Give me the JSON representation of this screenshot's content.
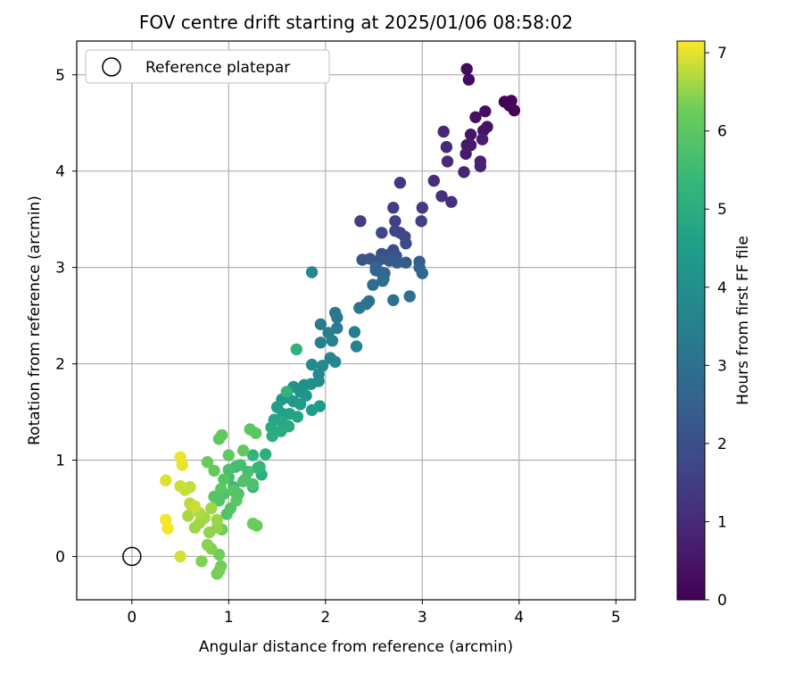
{
  "chart_data": {
    "type": "scatter",
    "title": "FOV centre drift starting at 2025/01/06 08:58:02",
    "xlabel": "Angular distance from reference (arcmin)",
    "ylabel": "Rotation from reference (arcmin)",
    "xlim": [
      -0.57,
      5.2
    ],
    "ylim": [
      -0.45,
      5.35
    ],
    "xticks": [
      "0",
      "1",
      "2",
      "3",
      "4",
      "5"
    ],
    "yticks": [
      "0",
      "1",
      "2",
      "3",
      "4",
      "5"
    ],
    "grid": true,
    "legend": {
      "placement": "top-left",
      "entries": [
        {
          "label": "Reference platepar",
          "marker": "open-circle"
        }
      ]
    },
    "reference_point": {
      "x": 0,
      "y": 0
    },
    "colorbar": {
      "label": "Hours from first FF file",
      "colormap": "viridis",
      "range": [
        0,
        7.15
      ],
      "ticks": [
        "0",
        "1",
        "2",
        "3",
        "4",
        "5",
        "6",
        "7"
      ]
    },
    "points": [
      [
        3.85,
        4.72,
        0.02
      ],
      [
        3.92,
        4.73,
        0.05
      ],
      [
        3.9,
        4.68,
        0.08
      ],
      [
        3.95,
        4.63,
        0.1
      ],
      [
        3.46,
        5.06,
        0.2
      ],
      [
        3.48,
        4.95,
        0.25
      ],
      [
        3.65,
        4.62,
        0.3
      ],
      [
        3.55,
        4.56,
        0.35
      ],
      [
        3.67,
        4.46,
        0.4
      ],
      [
        3.63,
        4.42,
        0.45
      ],
      [
        3.5,
        4.38,
        0.5
      ],
      [
        3.46,
        4.27,
        0.55
      ],
      [
        3.5,
        4.27,
        0.6
      ],
      [
        3.45,
        4.18,
        0.65
      ],
      [
        3.62,
        4.33,
        0.7
      ],
      [
        3.6,
        4.1,
        0.75
      ],
      [
        3.6,
        4.05,
        0.8
      ],
      [
        3.43,
        3.99,
        0.85
      ],
      [
        3.22,
        4.41,
        0.9
      ],
      [
        3.25,
        4.25,
        0.95
      ],
      [
        3.26,
        4.1,
        1.0
      ],
      [
        3.12,
        3.9,
        1.05
      ],
      [
        3.2,
        3.74,
        1.1
      ],
      [
        3.3,
        3.68,
        1.15
      ],
      [
        2.77,
        3.88,
        1.3
      ],
      [
        3.0,
        3.62,
        1.4
      ],
      [
        2.36,
        3.48,
        1.45
      ],
      [
        2.7,
        3.62,
        1.5
      ],
      [
        2.72,
        3.48,
        1.55
      ],
      [
        2.99,
        3.48,
        1.6
      ],
      [
        2.72,
        3.38,
        1.65
      ],
      [
        2.77,
        3.36,
        1.7
      ],
      [
        2.58,
        3.36,
        1.75
      ],
      [
        2.82,
        3.32,
        1.8
      ],
      [
        2.83,
        3.25,
        1.85
      ],
      [
        2.69,
        3.16,
        1.9
      ],
      [
        2.7,
        3.18,
        1.95
      ],
      [
        2.58,
        3.14,
        2.0
      ],
      [
        2.65,
        3.13,
        2.05
      ],
      [
        2.73,
        3.12,
        2.1
      ],
      [
        2.38,
        3.08,
        2.15
      ],
      [
        2.46,
        3.09,
        2.2
      ],
      [
        2.56,
        3.08,
        2.25
      ],
      [
        2.66,
        3.07,
        2.3
      ],
      [
        2.74,
        3.05,
        2.35
      ],
      [
        2.83,
        3.05,
        2.4
      ],
      [
        2.97,
        3.06,
        2.45
      ],
      [
        2.97,
        3.0,
        2.5
      ],
      [
        2.52,
        2.97,
        2.55
      ],
      [
        2.57,
        2.95,
        2.6
      ],
      [
        2.61,
        2.94,
        2.65
      ],
      [
        2.52,
        3.0,
        2.7
      ],
      [
        3.0,
        2.94,
        2.75
      ],
      [
        2.6,
        2.88,
        2.8
      ],
      [
        2.49,
        2.82,
        2.85
      ],
      [
        2.59,
        2.86,
        2.9
      ],
      [
        2.87,
        2.7,
        2.95
      ],
      [
        2.7,
        2.66,
        3.0
      ],
      [
        2.45,
        2.65,
        3.05
      ],
      [
        2.42,
        2.62,
        3.1
      ],
      [
        2.35,
        2.58,
        3.15
      ],
      [
        2.1,
        2.53,
        3.2
      ],
      [
        2.12,
        2.48,
        3.25
      ],
      [
        1.95,
        2.41,
        3.3
      ],
      [
        2.12,
        2.37,
        3.35
      ],
      [
        2.3,
        2.33,
        3.4
      ],
      [
        2.03,
        2.32,
        3.45
      ],
      [
        1.95,
        2.22,
        3.5
      ],
      [
        2.07,
        2.24,
        3.55
      ],
      [
        2.32,
        2.18,
        3.6
      ],
      [
        2.05,
        2.06,
        3.65
      ],
      [
        2.1,
        2.02,
        3.7
      ],
      [
        1.86,
        2.95,
        3.75
      ],
      [
        1.97,
        1.98,
        3.8
      ],
      [
        1.93,
        1.89,
        3.85
      ],
      [
        1.86,
        1.99,
        3.9
      ],
      [
        1.93,
        1.82,
        3.95
      ],
      [
        1.85,
        1.79,
        4.0
      ],
      [
        1.78,
        1.78,
        4.05
      ],
      [
        1.67,
        1.76,
        4.1
      ],
      [
        1.74,
        1.71,
        4.15
      ],
      [
        1.8,
        1.67,
        4.2
      ],
      [
        1.61,
        1.65,
        4.25
      ],
      [
        1.55,
        1.63,
        4.3
      ],
      [
        1.67,
        1.61,
        4.35
      ],
      [
        1.74,
        1.58,
        4.4
      ],
      [
        1.94,
        1.56,
        4.45
      ],
      [
        1.86,
        1.52,
        4.5
      ],
      [
        1.5,
        1.55,
        4.55
      ],
      [
        1.56,
        1.48,
        4.6
      ],
      [
        1.63,
        1.48,
        4.65
      ],
      [
        1.71,
        1.45,
        4.7
      ],
      [
        1.47,
        1.42,
        4.75
      ],
      [
        1.55,
        1.4,
        4.8
      ],
      [
        1.62,
        1.35,
        4.85
      ],
      [
        1.44,
        1.34,
        4.9
      ],
      [
        1.54,
        1.3,
        4.95
      ],
      [
        1.45,
        1.25,
        5.0
      ],
      [
        1.38,
        1.06,
        5.05
      ],
      [
        1.34,
        0.85,
        5.1
      ],
      [
        1.7,
        2.15,
        5.15
      ],
      [
        1.6,
        1.71,
        5.2
      ],
      [
        1.25,
        1.05,
        5.25
      ],
      [
        1.32,
        0.93,
        5.3
      ],
      [
        1.3,
        0.92,
        5.35
      ],
      [
        1.25,
        0.72,
        5.4
      ],
      [
        1.17,
        0.8,
        5.45
      ],
      [
        1.05,
        0.72,
        5.5
      ],
      [
        1.0,
        0.82,
        5.55
      ],
      [
        1.07,
        0.93,
        5.6
      ],
      [
        1.12,
        0.95,
        5.65
      ],
      [
        1.2,
        0.88,
        5.7
      ],
      [
        0.95,
        0.65,
        5.75
      ],
      [
        0.98,
        0.44,
        5.8
      ],
      [
        0.9,
        0.58,
        5.85
      ],
      [
        0.85,
        0.62,
        5.9
      ],
      [
        0.92,
        0.7,
        5.95
      ],
      [
        0.9,
        1.22,
        6.0
      ],
      [
        1.22,
        1.32,
        6.0
      ],
      [
        1.28,
        1.28,
        6.0
      ],
      [
        1.15,
        1.1,
        6.1
      ],
      [
        0.93,
        1.26,
        6.1
      ],
      [
        1.0,
        1.05,
        6.1
      ],
      [
        0.85,
        0.89,
        6.15
      ],
      [
        0.78,
        0.98,
        6.2
      ],
      [
        1.29,
        0.32,
        6.2
      ],
      [
        1.25,
        0.34,
        6.2
      ],
      [
        0.93,
        0.28,
        6.25
      ],
      [
        0.9,
        0.02,
        6.3
      ],
      [
        0.92,
        -0.1,
        6.3
      ],
      [
        0.88,
        -0.18,
        6.3
      ],
      [
        0.9,
        -0.15,
        6.35
      ],
      [
        0.72,
        -0.05,
        6.4
      ],
      [
        0.82,
        0.08,
        6.4
      ],
      [
        0.78,
        0.12,
        6.45
      ],
      [
        0.8,
        0.25,
        6.5
      ],
      [
        0.88,
        0.3,
        6.5
      ],
      [
        0.65,
        0.3,
        6.55
      ],
      [
        0.7,
        0.35,
        6.6
      ],
      [
        0.75,
        0.4,
        6.6
      ],
      [
        0.58,
        0.42,
        6.65
      ],
      [
        0.62,
        0.52,
        6.7
      ],
      [
        0.6,
        0.55,
        6.75
      ],
      [
        0.55,
        0.69,
        6.8
      ],
      [
        0.6,
        0.72,
        6.8
      ],
      [
        0.5,
        0.73,
        6.85
      ],
      [
        0.5,
        0.0,
        6.9
      ],
      [
        0.35,
        0.79,
        6.95
      ],
      [
        0.52,
        0.95,
        7.0
      ],
      [
        0.5,
        1.03,
        7.05
      ],
      [
        0.35,
        0.38,
        7.1
      ],
      [
        0.37,
        0.29,
        7.1
      ],
      [
        0.7,
        0.45,
        6.7
      ],
      [
        0.82,
        0.5,
        6.6
      ],
      [
        0.88,
        0.38,
        6.55
      ],
      [
        0.65,
        0.52,
        6.85
      ],
      [
        1.08,
        0.58,
        6.0
      ],
      [
        1.05,
        0.68,
        5.95
      ],
      [
        1.15,
        0.78,
        5.8
      ],
      [
        1.25,
        0.75,
        5.75
      ],
      [
        1.0,
        0.9,
        5.7
      ],
      [
        0.95,
        0.8,
        5.9
      ],
      [
        1.1,
        0.65,
        5.85
      ],
      [
        1.02,
        0.5,
        5.9
      ]
    ]
  }
}
